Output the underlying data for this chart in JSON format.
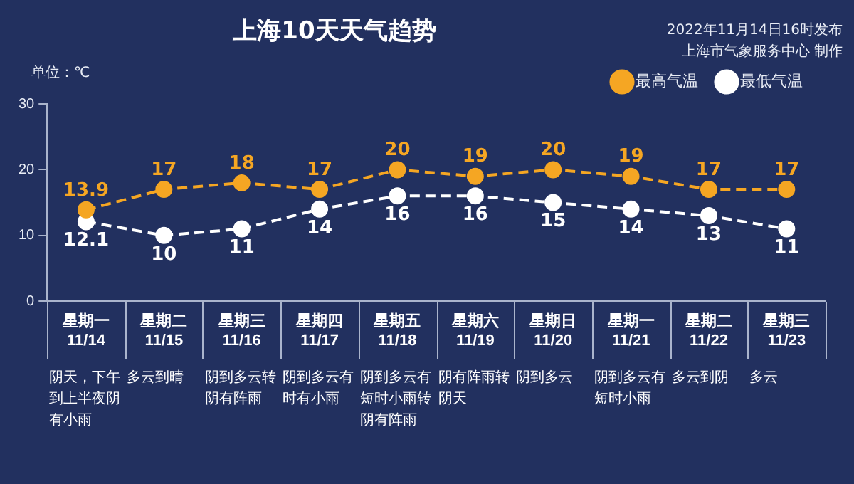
{
  "chart_data": {
    "type": "line",
    "title": "上海10天天气趋势",
    "ylabel": "单位：℃",
    "categories": [
      "星期一 11/14",
      "星期二 11/15",
      "星期三 11/16",
      "星期四 11/17",
      "星期五 11/18",
      "星期六 11/19",
      "星期日 11/20",
      "星期一 11/21",
      "星期二 11/22",
      "星期三 11/23"
    ],
    "series": [
      {
        "name": "最高气温",
        "color": "#f5a623",
        "values": [
          13.9,
          17,
          18,
          17,
          20,
          19,
          20,
          19,
          17,
          17
        ]
      },
      {
        "name": "最低气温",
        "color": "#ffffff",
        "values": [
          12.1,
          10,
          11,
          14,
          16,
          16,
          15,
          14,
          13,
          11
        ]
      }
    ],
    "ylim": [
      0,
      30
    ],
    "yticks": [
      0,
      10,
      20,
      30
    ],
    "grid": false,
    "legend": "top right",
    "marker": "circle",
    "line_style": "dashed",
    "data_labels": true,
    "annotations": [
      "2022年11月14日16时发布",
      "上海市气象服务中心 制作",
      "阴天，下午到上半夜阴有小雨",
      "多云到晴",
      "阴到多云转阴有阵雨",
      "阴到多云有时有小雨",
      "阴到多云有短时小雨转阴有阵雨",
      "阴有阵雨转阴天",
      "阴到多云",
      "阴到多云有短时小雨",
      "多云到阴",
      "多云"
    ]
  }
}
